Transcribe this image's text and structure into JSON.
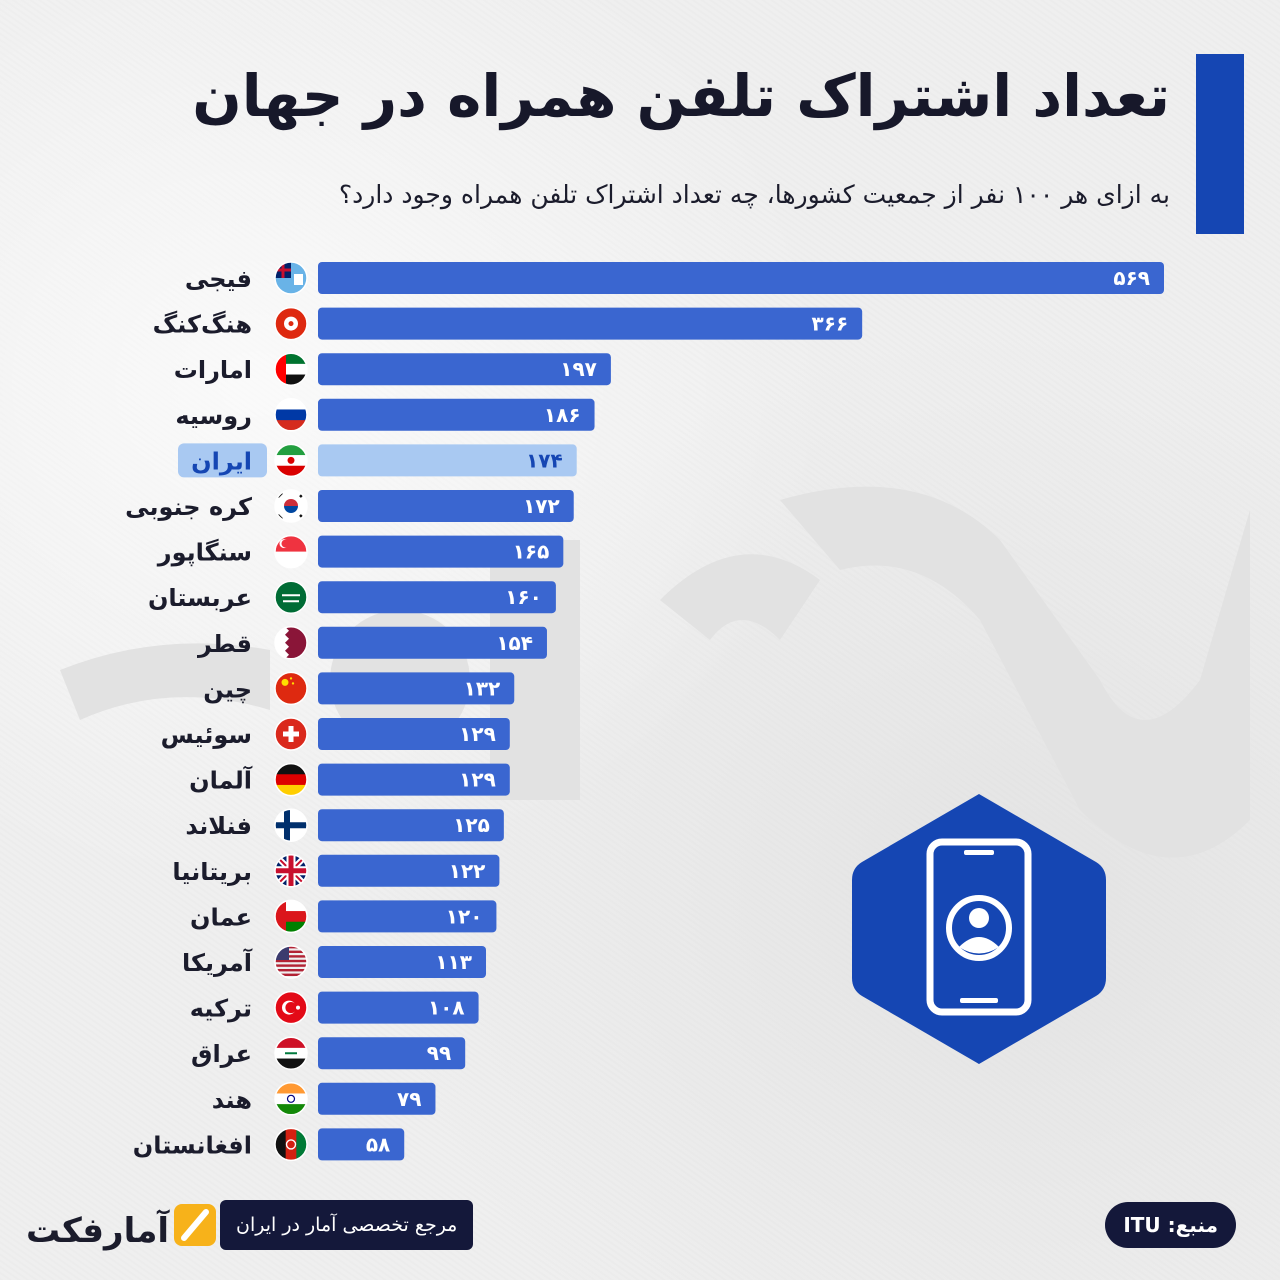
{
  "header": {
    "title": "تعداد اشتراک تلفن همراه در جهان",
    "subtitle": "به ازای هر ۱۰۰ نفر از جمعیت کشورها، چه تعداد اشتراک تلفن همراه وجود دارد؟"
  },
  "footer": {
    "brand_name": "آمارفکت",
    "tagline": "مرجع تخصصی آمار در ایران",
    "source": "منبع: ITU"
  },
  "colors": {
    "accent": "#1546b3",
    "bar": "#3a66d0",
    "highlight": "#a9c9f2",
    "dark_pill": "#14183a",
    "brand_yellow": "#f7b21a"
  },
  "icons": [
    "mobile-phone-user-icon",
    "country-flag-icon"
  ],
  "chart_data": {
    "type": "bar",
    "orientation": "horizontal",
    "title": "تعداد اشتراک تلفن همراه در جهان",
    "subtitle": "به ازای هر ۱۰۰ نفر از جمعیت کشورها، چه تعداد اشتراک تلفن همراه وجود دارد؟",
    "xlim": [
      0,
      569
    ],
    "grid": false,
    "highlight_category": "ایران",
    "categories": [
      "فیجی",
      "هنگ‌کنگ",
      "امارات",
      "روسیه",
      "ایران",
      "کره جنوبی",
      "سنگاپور",
      "عربستان",
      "قطر",
      "چین",
      "سوئیس",
      "آلمان",
      "فنلاند",
      "بریتانیا",
      "عمان",
      "آمریکا",
      "ترکیه",
      "عراق",
      "هند",
      "افغانستان"
    ],
    "values": [
      569,
      366,
      197,
      186,
      174,
      172,
      165,
      160,
      154,
      132,
      129,
      129,
      125,
      122,
      120,
      113,
      108,
      99,
      79,
      58
    ],
    "value_labels": [
      "۵۶۹",
      "۳۶۶",
      "۱۹۷",
      "۱۸۶",
      "۱۷۴",
      "۱۷۲",
      "۱۶۵",
      "۱۶۰",
      "۱۵۴",
      "۱۳۲",
      "۱۲۹",
      "۱۲۹",
      "۱۲۵",
      "۱۲۲",
      "۱۲۰",
      "۱۱۳",
      "۱۰۸",
      "۹۹",
      "۷۹",
      "۵۸"
    ],
    "flags": [
      "fiji-flag-icon",
      "hong-kong-flag-icon",
      "uae-flag-icon",
      "russia-flag-icon",
      "iran-flag-icon",
      "south-korea-flag-icon",
      "singapore-flag-icon",
      "saudi-arabia-flag-icon",
      "qatar-flag-icon",
      "china-flag-icon",
      "switzerland-flag-icon",
      "germany-flag-icon",
      "finland-flag-icon",
      "uk-flag-icon",
      "oman-flag-icon",
      "usa-flag-icon",
      "turkey-flag-icon",
      "iraq-flag-icon",
      "india-flag-icon",
      "afghanistan-flag-icon"
    ]
  }
}
